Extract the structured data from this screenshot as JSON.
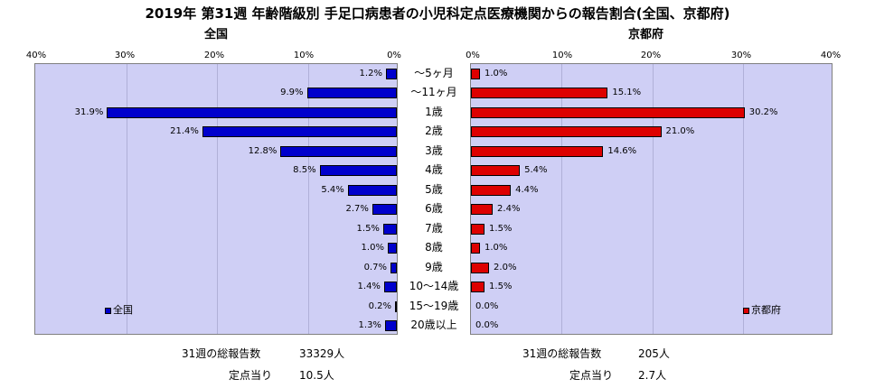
{
  "title": "2019年 第31週 年齢階級別 手足口病患者の小児科定点医療機関からの報告割合(全国、京都府)",
  "left_panel_title": "全国",
  "right_panel_title": "京都府",
  "left_ticks": [
    "40%",
    "30%",
    "20%",
    "10%",
    "0%"
  ],
  "right_ticks": [
    "0%",
    "10%",
    "20%",
    "30%",
    "40%"
  ],
  "colors": {
    "national": "#0000cc",
    "kyoto": "#dd0000",
    "plot_bg": "#cfcff5"
  },
  "chart_data": [
    {
      "type": "bar",
      "orientation": "horizontal",
      "direction": "right-to-left",
      "title": "全国",
      "categories": [
        "～5ヶ月",
        "～11ヶ月",
        "1歳",
        "2歳",
        "3歳",
        "4歳",
        "5歳",
        "6歳",
        "7歳",
        "8歳",
        "9歳",
        "10～14歳",
        "15～19歳",
        "20歳以上"
      ],
      "series": [
        {
          "name": "全国",
          "values": [
            1.2,
            9.9,
            31.9,
            21.4,
            12.8,
            8.5,
            5.4,
            2.7,
            1.5,
            1.0,
            0.7,
            1.4,
            0.2,
            1.3
          ]
        }
      ],
      "value_labels": [
        "1.2%",
        "9.9%",
        "31.9%",
        "21.4%",
        "12.8%",
        "8.5%",
        "5.4%",
        "2.7%",
        "1.5%",
        "1.0%",
        "0.7%",
        "1.4%",
        "0.2%",
        "1.3%"
      ],
      "xlim": [
        0,
        40
      ],
      "legend_position": "bottom-left"
    },
    {
      "type": "bar",
      "orientation": "horizontal",
      "direction": "left-to-right",
      "title": "京都府",
      "categories": [
        "～5ヶ月",
        "～11ヶ月",
        "1歳",
        "2歳",
        "3歳",
        "4歳",
        "5歳",
        "6歳",
        "7歳",
        "8歳",
        "9歳",
        "10～14歳",
        "15～19歳",
        "20歳以上"
      ],
      "series": [
        {
          "name": "京都府",
          "values": [
            1.0,
            15.1,
            30.2,
            21.0,
            14.6,
            5.4,
            4.4,
            2.4,
            1.5,
            1.0,
            2.0,
            1.5,
            0.0,
            0.0
          ]
        }
      ],
      "value_labels": [
        "1.0%",
        "15.1%",
        "30.2%",
        "21.0%",
        "14.6%",
        "5.4%",
        "4.4%",
        "2.4%",
        "1.5%",
        "1.0%",
        "2.0%",
        "1.5%",
        "0.0%",
        "0.0%"
      ],
      "xlim": [
        0,
        40
      ],
      "legend_position": "bottom-right"
    }
  ],
  "footer": {
    "national": {
      "total_label": "31週の総報告数",
      "total_value": "33329人",
      "per_site_label": "定点当り",
      "per_site_value": "10.5人"
    },
    "kyoto": {
      "total_label": "31週の総報告数",
      "total_value": "205人",
      "per_site_label": "定点当り",
      "per_site_value": "2.7人"
    }
  }
}
